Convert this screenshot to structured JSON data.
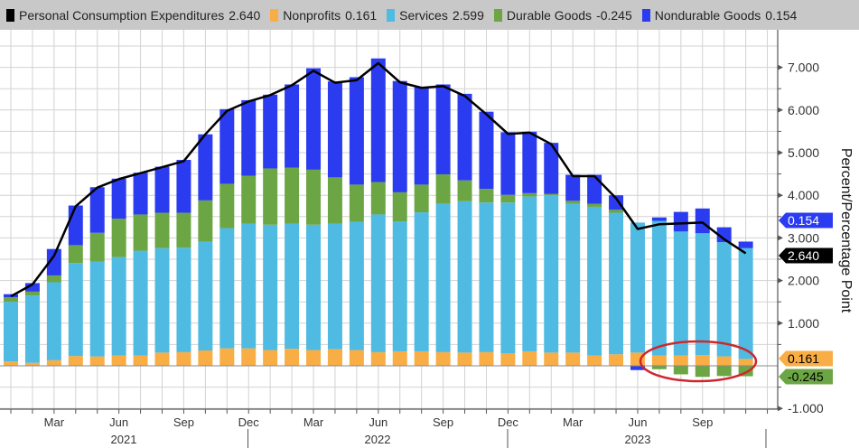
{
  "chart_data": {
    "type": "bar",
    "stacked": true,
    "title": "",
    "ylabel": "Percent/Percentage Point",
    "xlabel": "",
    "ylim": [
      -1.2,
      7.0
    ],
    "yticks": [
      -1,
      1,
      2,
      3,
      4,
      5,
      6,
      7
    ],
    "ytick_labels": [
      "-1.000",
      "1.000",
      "2.000",
      "3.000",
      "4.000",
      "5.000",
      "6.000",
      "7.000"
    ],
    "grid": true,
    "legend_position": "top",
    "categories": [
      "2021-01",
      "2021-02",
      "2021-03",
      "2021-04",
      "2021-05",
      "2021-06",
      "2021-07",
      "2021-08",
      "2021-09",
      "2021-10",
      "2021-11",
      "2021-12",
      "2022-01",
      "2022-02",
      "2022-03",
      "2022-04",
      "2022-05",
      "2022-06",
      "2022-07",
      "2022-08",
      "2022-09",
      "2022-10",
      "2022-11",
      "2022-12",
      "2023-01",
      "2023-02",
      "2023-03",
      "2023-04",
      "2023-05",
      "2023-06",
      "2023-07",
      "2023-08",
      "2023-09",
      "2023-10",
      "2023-11"
    ],
    "month_ticks": [
      {
        "label": "Mar",
        "index": 2
      },
      {
        "label": "Jun",
        "index": 5
      },
      {
        "label": "Sep",
        "index": 8
      },
      {
        "label": "Dec",
        "index": 11
      },
      {
        "label": "Mar",
        "index": 14
      },
      {
        "label": "Jun",
        "index": 17
      },
      {
        "label": "Sep",
        "index": 20
      },
      {
        "label": "Dec",
        "index": 23
      },
      {
        "label": "Mar",
        "index": 26
      },
      {
        "label": "Jun",
        "index": 29
      },
      {
        "label": "Sep",
        "index": 32
      }
    ],
    "year_labels": [
      "2021",
      "2022",
      "2023"
    ],
    "series": [
      {
        "name": "Nonprofits",
        "kind": "bar",
        "color": "#f8ad45",
        "last": "0.161",
        "values": [
          0.1,
          0.07,
          0.13,
          0.23,
          0.22,
          0.24,
          0.24,
          0.31,
          0.32,
          0.36,
          0.41,
          0.41,
          0.37,
          0.4,
          0.37,
          0.39,
          0.37,
          0.32,
          0.34,
          0.34,
          0.32,
          0.31,
          0.32,
          0.29,
          0.34,
          0.31,
          0.31,
          0.24,
          0.27,
          0.31,
          0.24,
          0.24,
          0.25,
          0.22,
          0.161
        ]
      },
      {
        "name": "Services",
        "kind": "bar",
        "color": "#4fbbe3",
        "last": "2.599",
        "values": [
          1.4,
          1.58,
          1.83,
          2.18,
          2.22,
          2.31,
          2.46,
          2.45,
          2.45,
          2.55,
          2.82,
          2.92,
          2.94,
          2.93,
          2.94,
          2.94,
          3.01,
          3.23,
          3.05,
          3.26,
          3.48,
          3.55,
          3.51,
          3.54,
          3.63,
          3.69,
          3.49,
          3.49,
          3.32,
          3.05,
          3.16,
          2.91,
          2.86,
          2.68,
          2.599
        ]
      },
      {
        "name": "Durable Goods",
        "kind": "bar",
        "color": "#6ca644",
        "last": "-0.245",
        "values": [
          0.11,
          0.09,
          0.16,
          0.42,
          0.68,
          0.9,
          0.85,
          0.83,
          0.82,
          0.97,
          1.04,
          1.13,
          1.32,
          1.32,
          1.29,
          1.09,
          0.87,
          0.76,
          0.68,
          0.65,
          0.69,
          0.49,
          0.32,
          0.18,
          0.08,
          0.03,
          0.07,
          0.07,
          0.07,
          0.0,
          -0.08,
          -0.2,
          -0.26,
          -0.24,
          -0.245
        ]
      },
      {
        "name": "Nondurable Goods",
        "kind": "bar",
        "color": "#2b3cf0",
        "last": "0.154",
        "values": [
          0.07,
          0.2,
          0.62,
          0.93,
          1.07,
          0.94,
          0.98,
          1.08,
          1.24,
          1.55,
          1.75,
          1.77,
          1.73,
          1.95,
          2.38,
          2.25,
          2.52,
          2.9,
          2.61,
          2.28,
          2.11,
          2.03,
          1.81,
          1.47,
          1.44,
          1.2,
          0.61,
          0.68,
          0.34,
          -0.1,
          0.08,
          0.46,
          0.58,
          0.35,
          0.154
        ]
      },
      {
        "name": "Personal Consumption Expenditures",
        "kind": "line",
        "color": "#000000",
        "last": "2.640",
        "values": [
          1.63,
          1.91,
          2.58,
          3.74,
          4.18,
          4.38,
          4.52,
          4.66,
          4.8,
          5.43,
          5.98,
          6.2,
          6.35,
          6.58,
          6.92,
          6.64,
          6.7,
          7.1,
          6.65,
          6.52,
          6.56,
          6.33,
          5.9,
          5.44,
          5.47,
          5.2,
          4.45,
          4.45,
          3.93,
          3.21,
          3.32,
          3.34,
          3.36,
          2.97,
          2.64
        ]
      }
    ],
    "annotation": {
      "shape": "ellipse",
      "color": "#d0262b",
      "target_months": [
        "2023-07",
        "2023-11"
      ]
    }
  },
  "legend": [
    {
      "label": "Personal Consumption Expenditures",
      "value": "2.640",
      "color": "#000000"
    },
    {
      "label": "Nonprofits",
      "value": "0.161",
      "color": "#f8ad45"
    },
    {
      "label": "Services",
      "value": "2.599",
      "color": "#4fbbe3"
    },
    {
      "label": "Durable Goods",
      "value": "-0.245",
      "color": "#6ca644"
    },
    {
      "label": "Nondurable Goods",
      "value": "0.154",
      "color": "#2b3cf0"
    }
  ],
  "value_tags": [
    {
      "value": "0.154",
      "at": 2.9,
      "color": "#2b3cf0",
      "text_color": "#ffffff"
    },
    {
      "value": "2.640",
      "at": 2.64,
      "color": "#000000",
      "text_color": "#ffffff"
    },
    {
      "value": "0.161",
      "at": 0.161,
      "color": "#f8ad45",
      "text_color": "#000000"
    },
    {
      "value": "-0.245",
      "at": -0.245,
      "color": "#6ca644",
      "text_color": "#000000"
    }
  ]
}
